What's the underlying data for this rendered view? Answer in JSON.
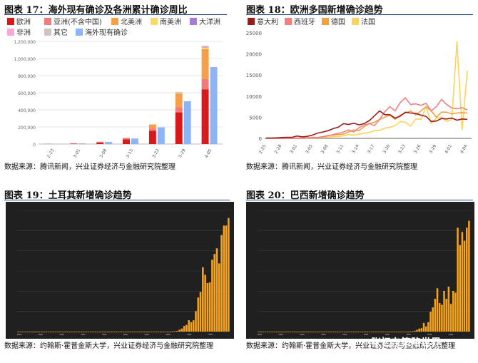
{
  "figures": [
    {
      "title": "图表 17：海外现有确诊及各洲累计确诊周比",
      "source": "数据来源：腾讯新闻，兴业证券经济与金融研究院整理"
    },
    {
      "title": "图表 18：欧洲多国新增确诊趋势",
      "source": "数据来源：腾讯新闻，兴业证券经济与金融研究院整理"
    },
    {
      "title": "图表 19：土耳其新增确诊趋势",
      "source": "数据来源：约翰斯·霍普金斯大学，兴业证券经济与金融研究院整理"
    },
    {
      "title": "图表 20：巴西新增确诊趋势",
      "source": "数据来源：约翰斯·霍普金斯大学，兴业证券经济与金融研究院整理"
    }
  ],
  "watermark": "张忆东策略世界",
  "chart_data": [
    {
      "type": "bar",
      "title": "图表 17：海外现有确诊及各洲累计确诊周比",
      "categories": [
        "2-23",
        "3-01",
        "3-08",
        "3-15",
        "3-22",
        "3-29",
        "4-05"
      ],
      "ylim": [
        0,
        1200000
      ],
      "yticks": [
        0,
        200000,
        400000,
        600000,
        800000,
        1000000,
        1200000
      ],
      "ytick_labels": [
        "0",
        "200,000",
        "400,000",
        "600,000",
        "800,000",
        "1,000,000",
        "1,200,000"
      ],
      "stacked_series": [
        {
          "name": "欧洲",
          "color": "#d7191c",
          "values": [
            1500,
            3500,
            18000,
            55000,
            155000,
            370000,
            640000
          ]
        },
        {
          "name": "亚洲(不含中国)",
          "color": "#f27a7a",
          "values": [
            2500,
            5000,
            8000,
            12000,
            25000,
            60000,
            120000
          ]
        },
        {
          "name": "北美洲",
          "color": "#f4a04a",
          "values": [
            100,
            200,
            800,
            5000,
            45000,
            160000,
            350000
          ]
        },
        {
          "name": "南美洲",
          "color": "#fcd96b",
          "values": [
            0,
            0,
            100,
            400,
            3000,
            8000,
            20000
          ]
        },
        {
          "name": "大洋洲",
          "color": "#a77bd9",
          "values": [
            0,
            0,
            100,
            300,
            1500,
            4500,
            7000
          ]
        },
        {
          "name": "非洲",
          "color": "#f5a8d4",
          "values": [
            0,
            0,
            100,
            300,
            1200,
            4000,
            9000
          ]
        },
        {
          "name": "其它",
          "color": "#cfc3c3",
          "values": [
            700,
            700,
            700,
            700,
            700,
            700,
            700
          ]
        }
      ],
      "side_series": {
        "name": "海外现有确诊",
        "color": "#8db4f5",
        "values": [
          4000,
          8000,
          25000,
          65000,
          195000,
          500000,
          900000
        ]
      }
    },
    {
      "type": "line",
      "title": "图表 18：欧洲多国新增确诊趋势",
      "ylim": [
        0,
        25000
      ],
      "yticks": [
        0,
        5000,
        10000,
        15000,
        20000,
        25000
      ],
      "x_tick_labels": [
        "2-25",
        "2-28",
        "3-02",
        "3-05",
        "3-08",
        "3-11",
        "3-14",
        "3-17",
        "3-20",
        "3-23",
        "3-26",
        "3-29",
        "4-01",
        "4-04"
      ],
      "series": [
        {
          "name": "意大利",
          "color": "#9b1b1b",
          "values": [
            80,
            90,
            110,
            200,
            230,
            240,
            560,
            350,
            470,
            780,
            1250,
            1500,
            1800,
            2300,
            2650,
            3500,
            3300,
            3600,
            3200,
            3500,
            4200,
            5300,
            6500,
            5600,
            5600,
            4800,
            5250,
            6200,
            6000,
            5900,
            5500,
            5200,
            4000,
            4100,
            4700,
            4600,
            4800,
            4300,
            4600,
            4500
          ]
        },
        {
          "name": "西班牙",
          "color": "#f08080",
          "values": [
            0,
            5,
            10,
            15,
            20,
            10,
            25,
            40,
            80,
            120,
            180,
            350,
            600,
            900,
            1200,
            1500,
            2000,
            1500,
            2500,
            3200,
            3500,
            3000,
            4500,
            6300,
            7500,
            6500,
            8500,
            9600,
            8000,
            8200,
            7800,
            8300,
            6500,
            7500,
            9200,
            8000,
            7200,
            7000,
            7300,
            6700
          ]
        },
        {
          "name": "德国",
          "color": "#f0a040",
          "values": [
            0,
            10,
            15,
            25,
            40,
            30,
            80,
            100,
            150,
            250,
            200,
            400,
            700,
            800,
            900,
            1000,
            1500,
            2000,
            1800,
            2800,
            3500,
            3800,
            4500,
            5000,
            5500,
            4500,
            5500,
            6000,
            6500,
            5500,
            6500,
            7500,
            6500,
            5000,
            6200,
            6200,
            5800,
            6000,
            6100,
            6000
          ]
        },
        {
          "name": "法国",
          "color": "#fcd35a",
          "values": [
            0,
            0,
            10,
            20,
            30,
            50,
            50,
            60,
            80,
            100,
            150,
            200,
            300,
            400,
            450,
            600,
            900,
            800,
            1000,
            1200,
            1400,
            1800,
            1900,
            2400,
            2600,
            3000,
            4000,
            3800,
            2900,
            4600,
            4500,
            7500,
            3500,
            4800,
            5000,
            4000,
            4500,
            23000,
            2000,
            16000
          ]
        }
      ]
    },
    {
      "type": "bar",
      "title": "图表 19：土耳其新增确诊趋势",
      "ylim": [
        0,
        3200
      ],
      "values": [
        0,
        0,
        0,
        0,
        0,
        0,
        0,
        0,
        0,
        0,
        0,
        0,
        0,
        0,
        0,
        0,
        0,
        0,
        0,
        0,
        0,
        0,
        0,
        0,
        0,
        0,
        0,
        0,
        0,
        0,
        0,
        0,
        0,
        0,
        0,
        0,
        0,
        0,
        0,
        0,
        0,
        0,
        0,
        0,
        0,
        0,
        0,
        0,
        0,
        0,
        0,
        0,
        0,
        0,
        0,
        0,
        0,
        0,
        0,
        0,
        0,
        0,
        0,
        0,
        0,
        0,
        5,
        10,
        20,
        50,
        80,
        150,
        180,
        300,
        250,
        300,
        540,
        900,
        1050,
        1700,
        1500,
        1280,
        1300,
        1900,
        2050,
        2200,
        1800,
        2550,
        2800,
        2800,
        3000
      ]
    },
    {
      "type": "bar",
      "title": "图表 20：巴西新增确诊趋势",
      "ylim": [
        0,
        1400
      ],
      "values": [
        0,
        0,
        0,
        0,
        0,
        0,
        0,
        0,
        0,
        0,
        0,
        0,
        0,
        0,
        0,
        0,
        0,
        0,
        0,
        0,
        0,
        0,
        0,
        0,
        0,
        0,
        0,
        0,
        0,
        0,
        0,
        0,
        0,
        0,
        0,
        0,
        0,
        0,
        0,
        0,
        0,
        0,
        0,
        0,
        0,
        0,
        0,
        0,
        0,
        0,
        0,
        0,
        0,
        0,
        0,
        0,
        0,
        0,
        0,
        0,
        0,
        0,
        0,
        0,
        0,
        0,
        0,
        2,
        5,
        10,
        20,
        35,
        40,
        100,
        60,
        110,
        230,
        280,
        380,
        500,
        330,
        310,
        470,
        380,
        520,
        320,
        470,
        450,
        1200,
        1000,
        1150,
        1050,
        1200,
        1280
      ]
    }
  ]
}
